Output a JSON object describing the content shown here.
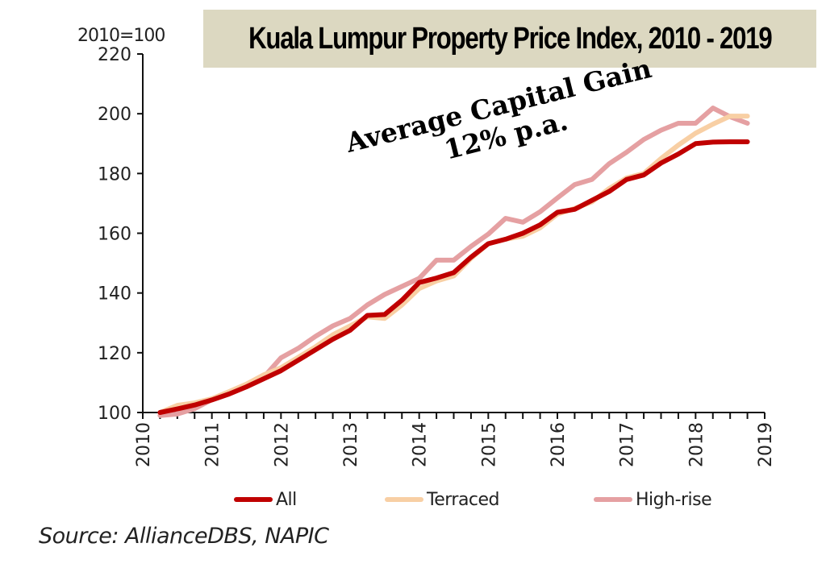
{
  "chart_data": {
    "type": "line",
    "title": "Kuala Lumpur Property Price Index, 2010 - 2019",
    "ylabel": "2010=100",
    "xlabel": "",
    "ylim": [
      100,
      220
    ],
    "yticks": [
      100,
      120,
      140,
      160,
      180,
      200,
      220
    ],
    "xlim": [
      2010,
      2019
    ],
    "xtick_labels": [
      "2010",
      "2011",
      "2012",
      "2013",
      "2014",
      "2015",
      "2016",
      "2017",
      "2018",
      "2019"
    ],
    "x_frequency": "quarterly",
    "x": [
      2010.25,
      2010.5,
      2010.75,
      2011.0,
      2011.25,
      2011.5,
      2011.75,
      2012.0,
      2012.25,
      2012.5,
      2012.75,
      2013.0,
      2013.25,
      2013.5,
      2013.75,
      2014.0,
      2014.25,
      2014.5,
      2014.75,
      2015.0,
      2015.25,
      2015.5,
      2015.75,
      2016.0,
      2016.25,
      2016.5,
      2016.75,
      2017.0,
      2017.25,
      2017.5,
      2017.75,
      2018.0,
      2018.25,
      2018.5,
      2018.75
    ],
    "series": [
      {
        "name": "All",
        "color": "#c00000",
        "values": [
          100.0,
          101.2,
          102.5,
          104.2,
          106.2,
          108.6,
          111.3,
          114.0,
          117.5,
          121.0,
          124.5,
          127.5,
          132.5,
          132.8,
          137.6,
          143.5,
          145.0,
          146.8,
          152.0,
          156.5,
          158.0,
          160.0,
          162.8,
          167.0,
          168.0,
          171.0,
          174.0,
          178.0,
          179.5,
          183.5,
          186.5,
          190.0,
          190.5,
          190.6,
          190.6
        ]
      },
      {
        "name": "Terraced",
        "color": "#f8cfa4",
        "values": [
          100.0,
          102.4,
          103.2,
          104.6,
          107.0,
          109.5,
          112.6,
          115.0,
          118.5,
          122.0,
          126.0,
          129.0,
          132.0,
          131.5,
          136.0,
          141.5,
          144.0,
          145.7,
          151.6,
          156.5,
          158.0,
          159.0,
          161.8,
          166.4,
          168.3,
          170.5,
          175.0,
          178.5,
          180.0,
          185.0,
          189.5,
          193.5,
          196.5,
          199.2,
          199.2
        ]
      },
      {
        "name": "High-rise",
        "color": "#e5a0a2",
        "values": [
          99.0,
          99.5,
          101.3,
          104.3,
          106.5,
          108.6,
          111.8,
          118.3,
          121.5,
          125.5,
          129.0,
          131.5,
          136.0,
          139.5,
          142.2,
          144.9,
          151.0,
          151.0,
          155.6,
          159.7,
          165.0,
          163.7,
          167.2,
          171.8,
          176.3,
          178.0,
          183.3,
          187.1,
          191.4,
          194.5,
          196.8,
          196.8,
          201.9,
          199.0,
          196.8
        ]
      }
    ],
    "annotations": [
      "Average Capital Gain",
      "12% p.a."
    ],
    "legend": {
      "placement": "bottom",
      "entries": [
        "All",
        "Terraced",
        "High-rise"
      ]
    },
    "grid": false,
    "source": "Source: AllianceDBS, NAPIC"
  }
}
